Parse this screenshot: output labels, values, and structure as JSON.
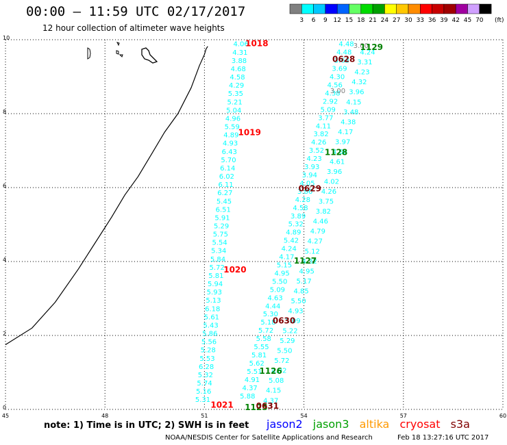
{
  "header": {
    "title": "00:00 – 11:59 UTC 02/17/2017",
    "subtitle": "12 hour collection of altimeter wave heights"
  },
  "scale": {
    "colors": [
      "#808080",
      "#00ffff",
      "#00c8ff",
      "#0000ff",
      "#0064ff",
      "#64ff64",
      "#00dc00",
      "#00a000",
      "#ffff00",
      "#ffc800",
      "#ff8c00",
      "#ff0000",
      "#c80000",
      "#a00000",
      "#a000a0",
      "#d0a0ff",
      "#000000"
    ],
    "labels": [
      "3",
      "6",
      "9",
      "12",
      "15",
      "18",
      "21",
      "24",
      "27",
      "30",
      "33",
      "36",
      "39",
      "42",
      "45",
      "70"
    ],
    "unit": "(ft)"
  },
  "map": {
    "x_ticks": [
      "45",
      "48",
      "51",
      "54",
      "57",
      "60"
    ],
    "y_ticks": [
      "0",
      "2",
      "4",
      "6",
      "8",
      "10"
    ],
    "track_labels": [
      {
        "text": "1018",
        "color": "#ff0000",
        "lon": 52.58,
        "lat": 9.82
      },
      {
        "text": "1019",
        "color": "#ff0000",
        "lon": 52.36,
        "lat": 7.42
      },
      {
        "text": "1020",
        "color": "#ff0000",
        "lon": 51.92,
        "lat": 3.7
      },
      {
        "text": "1021",
        "color": "#ff0000",
        "lon": 51.53,
        "lat": 0.05
      },
      {
        "text": "1129",
        "color": "#008000",
        "lon": 56.04,
        "lat": 9.72
      },
      {
        "text": "1128",
        "color": "#008000",
        "lon": 54.97,
        "lat": 6.88
      },
      {
        "text": "1127",
        "color": "#008000",
        "lon": 54.04,
        "lat": 3.94
      },
      {
        "text": "1126",
        "color": "#008000",
        "lon": 53.0,
        "lat": 0.96
      },
      {
        "text": "1125",
        "color": "#008000",
        "lon": 52.56,
        "lat": -0.02
      },
      {
        "text": "0628",
        "color": "#800000",
        "lon": 55.2,
        "lat": 9.4
      },
      {
        "text": "0629",
        "color": "#800000",
        "lon": 54.18,
        "lat": 5.9
      },
      {
        "text": "0630",
        "color": "#800000",
        "lon": 53.4,
        "lat": 2.32
      },
      {
        "text": "0631",
        "color": "#800000",
        "lon": 52.9,
        "lat": 0.02
      }
    ],
    "passes": [
      {
        "name": "jason3-1018/1019/1020/1021",
        "color": "#00ffff",
        "start": {
          "lon": 52.1,
          "lat": 9.82
        },
        "end": {
          "lon": 50.95,
          "lat": 0.2
        },
        "values": [
          "4.06",
          "4.31",
          "3.88",
          "4.68",
          "4.58",
          "4.29",
          "5.35",
          "5.21",
          "5.04",
          "4.96",
          "5.59",
          "4.89",
          "4.93",
          "6.43",
          "5.70",
          "6.14",
          "6.02",
          "6.11",
          "6.27",
          "5.45",
          "6.51",
          "5.91",
          "5.29",
          "5.75",
          "5.54",
          "5.34",
          "5.84",
          "5.72",
          "5.81",
          "5.94",
          "5.93",
          "5.13",
          "6.18",
          "5.61",
          "5.43",
          "5.86",
          "5.56",
          "5.28",
          "5.53",
          "6.28",
          "5.32",
          "5.74",
          "5.16",
          "5.31"
        ]
      },
      {
        "name": "jason3-ascend",
        "color": "#00ffff",
        "start": {
          "lon": 55.28,
          "lat": 9.82
        },
        "end": {
          "lon": 52.3,
          "lat": 0.3
        },
        "values": [
          "4.48",
          "4.48",
          "3.63",
          "3.69",
          "4.30",
          "4.56",
          "4.38",
          "2.92",
          "5.09",
          "3.77",
          "4.11",
          "3.82",
          "4.26",
          "3.52",
          "4.23",
          "3.93",
          "3.94",
          "4.05",
          "3.86",
          "4.28",
          "4.58",
          "3.89",
          "5.32",
          "4.89",
          "5.42",
          "4.24",
          "4.17",
          "5.15",
          "4.95",
          "5.50",
          "5.09",
          "4.63",
          "4.44",
          "5.30",
          "5.18",
          "5.72",
          "5.58",
          "5.55",
          "5.81",
          "5.62",
          "5.51",
          "4.91",
          "4.37",
          "5.88"
        ]
      },
      {
        "name": "saral-ascend",
        "color": "#00ffff",
        "start": {
          "lon": 55.92,
          "lat": 9.6
        },
        "end": {
          "lon": 53.0,
          "lat": 0.18
        },
        "values": [
          "4.24",
          "3.31",
          "4.23",
          "4.32",
          "3.96",
          "4.15",
          "3.48",
          "4.38",
          "4.17",
          "3.97",
          "4.68",
          "4.61",
          "3.96",
          "4.02",
          "4.26",
          "3.75",
          "3.82",
          "4.46",
          "4.79",
          "4.27",
          "5.12",
          "4.32",
          "4.95",
          "5.17",
          "4.85",
          "5.50",
          "4.93",
          "5.09",
          "5.22",
          "5.29",
          "5.50",
          "5.72",
          "4.92",
          "5.08",
          "4.15",
          "4.37"
        ]
      },
      {
        "name": "gray-points",
        "color": "#808080",
        "start": {
          "lon": 55.72,
          "lat": 9.78
        },
        "end": {
          "lon": 55.02,
          "lat": 8.56
        },
        "values": [
          "3.00",
          "3.00"
        ]
      }
    ]
  },
  "footer": {
    "note": "note: 1) Time is in UTC; 2) SWH is in feet",
    "satellites": [
      {
        "name": "jason2",
        "color": "#0000ff"
      },
      {
        "name": "jason3",
        "color": "#00a000"
      },
      {
        "name": "altika",
        "color": "#ff9900"
      },
      {
        "name": "cryosat",
        "color": "#ff0000"
      },
      {
        "name": "s3a",
        "color": "#800000"
      }
    ],
    "credit": "NOAA/NESDIS Center for Satellite Applications and Research",
    "timestamp": "Feb 18 13:27:16 UTC 2017"
  }
}
